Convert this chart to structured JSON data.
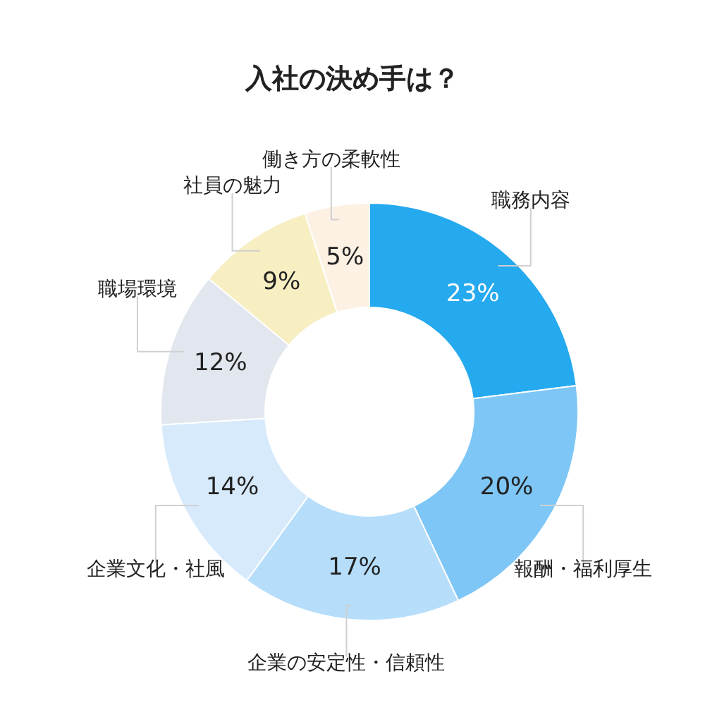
{
  "chart_data": {
    "type": "donut",
    "title": "入社の決め手は？",
    "categories": [
      "職務内容",
      "報酬・福利厚生",
      "企業の安定性・信頼性",
      "企業文化・社風",
      "職場環境",
      "社員の魅力",
      "働き方の柔軟性"
    ],
    "values": [
      23,
      20,
      17,
      14,
      12,
      9,
      5
    ],
    "colors": [
      "#25a9ef",
      "#7ec6f6",
      "#b6defb",
      "#d7eafc",
      "#e2e6ee",
      "#f7eec2",
      "#fdf1e4"
    ],
    "value_labels": [
      "23%",
      "20%",
      "17%",
      "14%",
      "12%",
      "9%",
      "5%"
    ]
  }
}
